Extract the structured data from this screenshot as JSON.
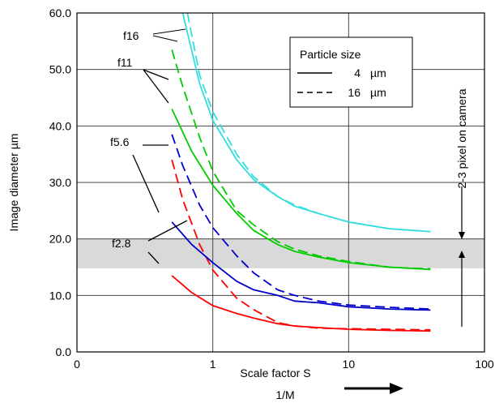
{
  "chart_data": {
    "type": "line",
    "xlabel": "Scale factor S",
    "xlabel2": "1/M",
    "ylabel": "Image diameter µm",
    "xscale": "log",
    "xlim": [
      0.1,
      100
    ],
    "ylim": [
      0,
      60
    ],
    "x_ticks": [
      {
        "value": 0.1,
        "label": "0"
      },
      {
        "value": 1,
        "label": "1"
      },
      {
        "value": 10,
        "label": "10"
      },
      {
        "value": 100,
        "label": "100"
      }
    ],
    "y_ticks": [
      {
        "value": 0,
        "label": "0.0"
      },
      {
        "value": 10,
        "label": "10.0"
      },
      {
        "value": 20,
        "label": "20.0"
      },
      {
        "value": 30,
        "label": "30.0"
      },
      {
        "value": 40,
        "label": "40.0"
      },
      {
        "value": 50,
        "label": "50.0"
      },
      {
        "value": 60,
        "label": "60.0"
      }
    ],
    "grid": true,
    "legend": {
      "title": "Particle size",
      "placement": "top-right",
      "entries": [
        {
          "style": "solid",
          "value": "4",
          "unit": "µm"
        },
        {
          "style": "dashed",
          "value": "16",
          "unit": "µm"
        }
      ]
    },
    "shaded_band": {
      "y_range": [
        14.8,
        20
      ],
      "color": "#d9d9d9"
    },
    "band_annotation": "2-3 pixel on camera",
    "series": [
      {
        "aperture": "f2.8",
        "particle_um": 4,
        "style": "solid",
        "color": "#ff0000",
        "x": [
          0.5,
          0.7,
          1,
          1.5,
          2,
          3,
          4,
          6,
          10,
          20,
          40
        ],
        "y": [
          13.5,
          10.5,
          8.2,
          6.8,
          6.0,
          5.0,
          4.6,
          4.3,
          4.0,
          3.8,
          3.7
        ]
      },
      {
        "aperture": "f2.8",
        "particle_um": 16,
        "style": "dashed",
        "color": "#ff0000",
        "x": [
          0.5,
          0.6,
          0.8,
          1,
          1.5,
          2,
          3,
          4,
          6,
          10,
          20,
          40
        ],
        "y": [
          34.0,
          27.0,
          19.0,
          14.5,
          9.5,
          7.5,
          5.2,
          4.6,
          4.2,
          4.1,
          4.0,
          3.9
        ]
      },
      {
        "aperture": "f5.6",
        "particle_um": 4,
        "style": "solid",
        "color": "#0000cc",
        "x": [
          0.5,
          0.7,
          1,
          1.5,
          2,
          3,
          4,
          6,
          10,
          20,
          40
        ],
        "y": [
          23.0,
          19.0,
          15.8,
          12.5,
          11.0,
          10.0,
          9.0,
          8.7,
          8.0,
          7.6,
          7.4
        ]
      },
      {
        "aperture": "f5.6",
        "particle_um": 16,
        "style": "dashed",
        "color": "#0000cc",
        "x": [
          0.5,
          0.6,
          0.8,
          1,
          1.5,
          2,
          3,
          4,
          6,
          10,
          20,
          40
        ],
        "y": [
          38.5,
          33.0,
          26.0,
          22.0,
          17.0,
          14.0,
          11.0,
          10.0,
          9.0,
          8.3,
          7.9,
          7.6
        ]
      },
      {
        "aperture": "f11",
        "particle_um": 4,
        "style": "solid",
        "color": "#00cc00",
        "x": [
          0.5,
          0.7,
          1,
          1.5,
          2,
          3,
          4,
          6,
          10,
          20,
          40
        ],
        "y": [
          43.0,
          35.5,
          29.5,
          24.5,
          21.5,
          19.0,
          17.8,
          16.8,
          15.8,
          15.0,
          14.6
        ]
      },
      {
        "aperture": "f11",
        "particle_um": 16,
        "style": "dashed",
        "color": "#00cc00",
        "x": [
          0.5,
          0.6,
          0.8,
          1,
          1.5,
          2,
          3,
          4,
          6,
          10,
          20,
          40
        ],
        "y": [
          53.5,
          47.0,
          38.0,
          32.0,
          25.0,
          22.5,
          19.5,
          18.2,
          17.0,
          16.0,
          15.0,
          14.7
        ]
      },
      {
        "aperture": "f16",
        "particle_um": 4,
        "style": "solid",
        "color": "#33dddd",
        "x": [
          0.6,
          0.8,
          1,
          1.5,
          2,
          3,
          4,
          6,
          10,
          20,
          40
        ],
        "y": [
          60.0,
          47.5,
          41.0,
          34.0,
          30.5,
          27.5,
          25.8,
          24.5,
          23.0,
          21.8,
          21.3
        ]
      },
      {
        "aperture": "f16",
        "particle_um": 16,
        "style": "dashed",
        "color": "#33dddd",
        "x": [
          0.65,
          0.8,
          1,
          1.5,
          2,
          3,
          4,
          6,
          10,
          20,
          40
        ],
        "y": [
          60.0,
          49.0,
          42.5,
          35.0,
          31.0,
          27.5,
          26.0,
          24.5,
          23.0,
          21.8,
          21.3
        ]
      }
    ],
    "annotations": [
      {
        "label": "f16"
      },
      {
        "label": "f11"
      },
      {
        "label": "f5.6"
      },
      {
        "label": "f2.8"
      }
    ]
  }
}
